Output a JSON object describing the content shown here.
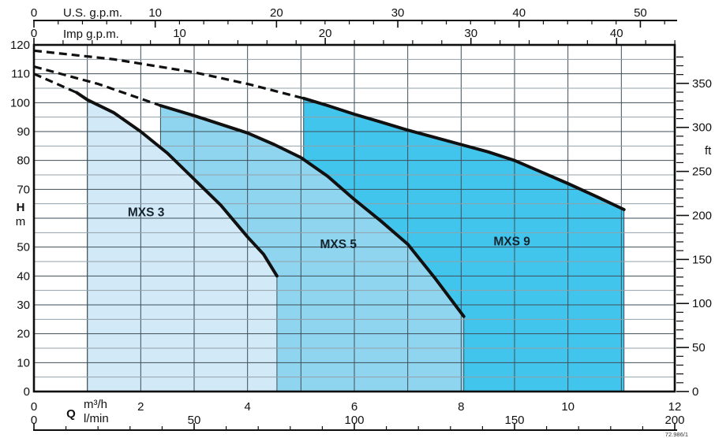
{
  "drawing_number": "72.986/1",
  "colors": {
    "mxs3_fill": "#d2e9f8",
    "mxs5_fill": "#8fd5f0",
    "mxs9_fill": "#42c5ec",
    "curve": "#101010",
    "grid_major": "#3f4e57",
    "grid_minor": "#93a0a8",
    "axis": "#0d0d0d"
  },
  "axes": {
    "us_gpm": {
      "label": "U.S. g.p.m.",
      "per_m3h": 4.4029,
      "major_ticks": [
        0,
        10,
        20,
        30,
        40,
        50
      ],
      "minor_step": 2,
      "minor_max": 52
    },
    "imp_gpm": {
      "label": "Imp g.p.m.",
      "per_m3h": 3.6662,
      "major_ticks": [
        0,
        10,
        20,
        30,
        40
      ],
      "minor_step": 2,
      "minor_max": 44
    },
    "h_m": {
      "label": "H",
      "unit": "m",
      "major_ticks": [
        0,
        10,
        20,
        30,
        40,
        50,
        70,
        80,
        90,
        100,
        110,
        120
      ],
      "range": [
        0,
        120
      ]
    },
    "ft": {
      "label": "ft",
      "per_m": 3.2808,
      "major_ticks": [
        0,
        50,
        100,
        150,
        200,
        250,
        300,
        350
      ],
      "minor_step": 10,
      "minor_max": 380
    },
    "m3h": {
      "label": "m³/h",
      "major_ticks": [
        0,
        2,
        4,
        6,
        8,
        10,
        12
      ],
      "range": [
        0,
        12
      ]
    },
    "lmin": {
      "label": "l/min",
      "major_ticks": [
        0,
        50,
        100,
        150,
        200
      ],
      "minor_step": 10,
      "minor_max": 200
    },
    "flow_label": "Q"
  },
  "chart_data": {
    "type": "area",
    "x_unit": "m³/h",
    "y_unit": "m",
    "x_range": [
      0,
      12
    ],
    "y_range": [
      0,
      120
    ],
    "grid": "on",
    "series": [
      {
        "name": "MXS 9",
        "fill_color_key": "mxs9_fill",
        "label_at": {
          "q": 8.95,
          "h": 52
        },
        "fill_from_q": 5.05,
        "dashed": [
          [
            0,
            118
          ],
          [
            1.5,
            115
          ],
          [
            3,
            110.5
          ],
          [
            4,
            106.5
          ],
          [
            5.05,
            101.5
          ]
        ],
        "curve": [
          [
            5.05,
            101.5
          ],
          [
            5.5,
            99
          ],
          [
            6,
            96
          ],
          [
            6.5,
            93.3
          ],
          [
            7,
            90.5
          ],
          [
            7.5,
            88
          ],
          [
            8,
            85.5
          ],
          [
            8.5,
            83
          ],
          [
            9,
            80
          ],
          [
            9.5,
            76
          ],
          [
            10,
            72
          ],
          [
            10.5,
            67.8
          ],
          [
            11.05,
            63
          ]
        ]
      },
      {
        "name": "MXS 5",
        "fill_color_key": "mxs5_fill",
        "label_at": {
          "q": 5.7,
          "h": 51
        },
        "fill_from_q": 2.37,
        "dashed": [
          [
            0,
            112.5
          ],
          [
            1.2,
            106.5
          ],
          [
            2.37,
            99
          ]
        ],
        "curve": [
          [
            2.37,
            99
          ],
          [
            3,
            95.5
          ],
          [
            3.5,
            92.5
          ],
          [
            4,
            89.5
          ],
          [
            4.5,
            85.5
          ],
          [
            5,
            81
          ],
          [
            5.5,
            74.5
          ],
          [
            6,
            66.5
          ],
          [
            6.5,
            59
          ],
          [
            7,
            51
          ],
          [
            7.5,
            39.5
          ],
          [
            8.05,
            26
          ]
        ]
      },
      {
        "name": "MXS 3",
        "fill_color_key": "mxs3_fill",
        "label_at": {
          "q": 2.1,
          "h": 62
        },
        "fill_from_q": 1.0,
        "dashed": [
          [
            0,
            110
          ],
          [
            0.8,
            103.5
          ]
        ],
        "curve": [
          [
            0.8,
            103.5
          ],
          [
            1,
            101
          ],
          [
            1.5,
            96.5
          ],
          [
            2,
            90
          ],
          [
            2.5,
            82.5
          ],
          [
            3,
            73.5
          ],
          [
            3.5,
            64.5
          ],
          [
            4,
            53.5
          ],
          [
            4.3,
            47.5
          ],
          [
            4.55,
            40
          ]
        ]
      }
    ]
  }
}
